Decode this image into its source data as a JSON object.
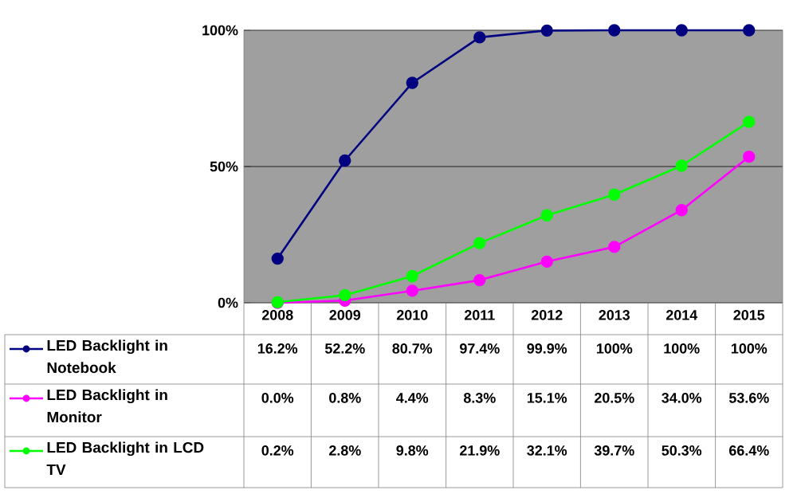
{
  "chart_data": {
    "type": "line",
    "categories": [
      "2008",
      "2009",
      "2010",
      "2011",
      "2012",
      "2013",
      "2014",
      "2015"
    ],
    "ylim": [
      0,
      100
    ],
    "yticks": [
      {
        "value": 0,
        "label": "0%"
      },
      {
        "value": 50,
        "label": "50%"
      },
      {
        "value": 100,
        "label": "100%"
      }
    ],
    "grid": "y",
    "legend": "bottom",
    "marker": "circle",
    "line_style": "solid",
    "series": [
      {
        "name": "LED Backlight in Notebook",
        "color": "#000080",
        "values": [
          16.2,
          52.2,
          80.7,
          97.4,
          99.9,
          100,
          100,
          100
        ],
        "value_labels": [
          "16.2%",
          "52.2%",
          "80.7%",
          "97.4%",
          "99.9%",
          "100%",
          "100%",
          "100%"
        ]
      },
      {
        "name": "LED Backlight in Monitor",
        "color": "#ff00ff",
        "values": [
          0.0,
          0.8,
          4.4,
          8.3,
          15.1,
          20.5,
          34.0,
          53.6
        ],
        "value_labels": [
          "0.0%",
          "0.8%",
          "4.4%",
          "8.3%",
          "15.1%",
          "20.5%",
          "34.0%",
          "53.6%"
        ]
      },
      {
        "name": "LED Backlight in LCD TV",
        "color": "#00ff00",
        "values": [
          0.2,
          2.8,
          9.8,
          21.9,
          32.1,
          39.7,
          50.3,
          66.4
        ],
        "value_labels": [
          "0.2%",
          "2.8%",
          "9.8%",
          "21.9%",
          "32.1%",
          "39.7%",
          "50.3%",
          "66.4%"
        ]
      }
    ]
  }
}
